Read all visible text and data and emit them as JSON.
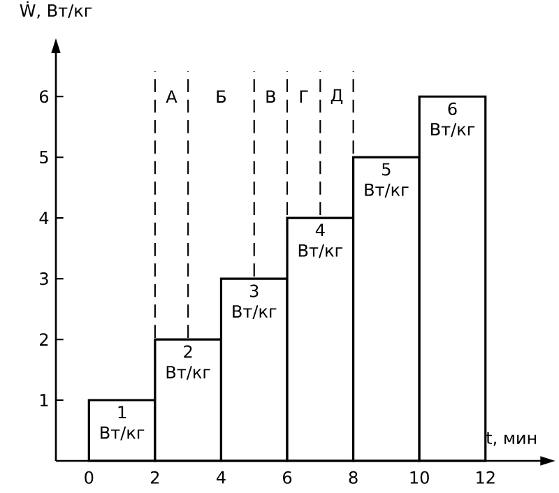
{
  "chart_data": {
    "type": "histogram",
    "xlabel": "t, мин",
    "ylabel": "Ẇ, Вт/кг",
    "bins": [
      0,
      2,
      4,
      6,
      8,
      10,
      12
    ],
    "values": [
      1,
      2,
      3,
      4,
      5,
      6
    ],
    "color": "#000000",
    "value_labels": [
      "1 Вт/кг",
      "2 Вт/кг",
      "3 Вт/кг",
      "4 Вт/кг",
      "5 Вт/кг",
      "6 Вт/кг"
    ],
    "xlim": [
      -1,
      14
    ],
    "ylim": [
      0,
      6.9
    ],
    "xticks": [
      0,
      2,
      4,
      6,
      8,
      10,
      12
    ],
    "yticks": [
      1,
      2,
      3,
      4,
      5,
      6
    ],
    "ref_lines": [
      {
        "axis": "x",
        "value": 2,
        "line_style": "dashed"
      },
      {
        "axis": "x",
        "value": 3,
        "line_style": "dashed"
      },
      {
        "axis": "x",
        "value": 5,
        "line_style": "dashed"
      },
      {
        "axis": "x",
        "value": 6,
        "line_style": "dashed"
      },
      {
        "axis": "x",
        "value": 7,
        "line_style": "dashed"
      },
      {
        "axis": "x",
        "value": 8,
        "line_style": "dashed"
      }
    ],
    "annotations": [
      {
        "text": "А",
        "x": 2.5,
        "y": 6
      },
      {
        "text": "Б",
        "x": 4,
        "y": 6
      },
      {
        "text": "В",
        "x": 5.5,
        "y": 6
      },
      {
        "text": "Г",
        "x": 6.5,
        "y": 6
      },
      {
        "text": "Д",
        "x": 7.5,
        "y": 6
      }
    ]
  }
}
